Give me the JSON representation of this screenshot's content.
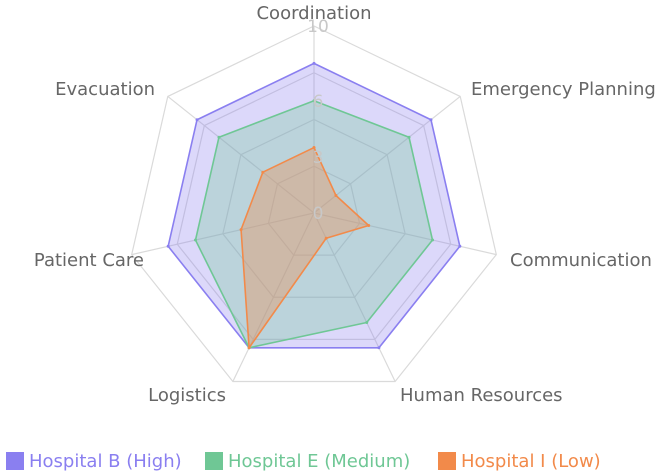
{
  "chart_data": {
    "type": "radar",
    "axes": [
      "Coordination",
      "Emergency Planning",
      "Communication",
      "Human Resources",
      "Logistics",
      "Patient Care",
      "Evacuation"
    ],
    "rmin": 0,
    "rmax": 10,
    "ticks": [
      0,
      3,
      6,
      10
    ],
    "grid": true,
    "legend": "bottom",
    "series": [
      {
        "name": "Hospital B (High)",
        "values": [
          8,
          8,
          8,
          8,
          8,
          8,
          8
        ],
        "color": "#8a7ff0",
        "fill": "rgba(138,127,240,0.30)"
      },
      {
        "name": "Hospital E (Medium)",
        "values": [
          6,
          6.5,
          6.5,
          6.5,
          8,
          6.5,
          6.5
        ],
        "color": "#6fc795",
        "fill": "rgba(111,199,149,0.30)"
      },
      {
        "name": "Hospital I (Low)",
        "values": [
          3.5,
          1.5,
          3,
          1.5,
          8,
          4,
          3.5
        ],
        "color": "#f28a4a",
        "fill": "rgba(242,138,74,0.35)"
      }
    ]
  }
}
